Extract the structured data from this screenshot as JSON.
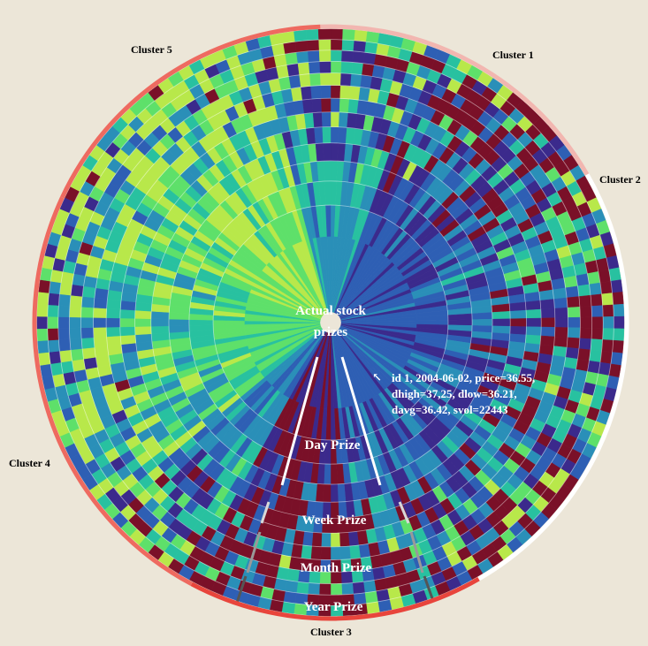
{
  "clusters": [
    {
      "label": "Cluster 1",
      "color": "#f2b6b0"
    },
    {
      "label": "Cluster 2",
      "color": "#ffffff"
    },
    {
      "label": "Cluster 3",
      "color": "#e8453c"
    },
    {
      "label": "Cluster 4",
      "color": "#ee6a60"
    },
    {
      "label": "Cluster 5",
      "color": "#ee6a60"
    }
  ],
  "center_label": [
    "Actual stock",
    "prizes"
  ],
  "annotation": {
    "arrow_symbol": "↖",
    "lines": [
      "id 1, 2004-06-02, price=36.55,",
      "dhigh=37,25, dlow=36.21,",
      "davg=36.42, svol=22443"
    ]
  },
  "bands": [
    "Day Prize",
    "Week Prize",
    "Month Prize",
    "Year Prize"
  ],
  "palette": [
    "#7a1028",
    "#3b2a8c",
    "#2e5fb4",
    "#2a8fb8",
    "#28c1a0",
    "#5ee06a",
    "#b8e84a"
  ]
}
